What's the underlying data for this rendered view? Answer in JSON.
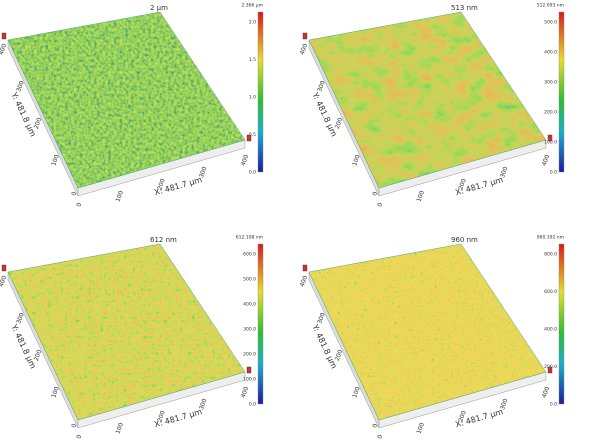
{
  "panels": [
    {
      "title": "2 µm",
      "scale_max": "2.366 µm",
      "scale_ticks": [
        "2.0",
        "1.5",
        "1.0",
        "0.5",
        "0.0"
      ],
      "x_label": "X: 481.7 µm",
      "y_label": "Y: 481.8 µm",
      "x_ticks": [
        "0",
        "100",
        "200",
        "300",
        "400"
      ],
      "y_ticks": [
        "0",
        "100",
        "200",
        "300",
        "400"
      ]
    },
    {
      "title": "513 nm",
      "scale_max": "512.093 nm",
      "scale_ticks": [
        "500.0",
        "400.0",
        "300.0",
        "200.0",
        "100.0",
        "0.0"
      ],
      "x_label": "X: 481.7 µm",
      "y_label": "Y: 481.8 µm",
      "x_ticks": [
        "0",
        "100",
        "200",
        "300",
        "400"
      ],
      "y_ticks": [
        "0",
        "100",
        "200",
        "300",
        "400"
      ]
    },
    {
      "title": "612 nm",
      "scale_max": "612.108 nm",
      "scale_ticks": [
        "600.0",
        "500.0",
        "400.0",
        "300.0",
        "200.0",
        "100.0",
        "0.0"
      ],
      "x_label": "X: 481.7 µm",
      "y_label": "Y: 481.8 µm",
      "x_ticks": [
        "0",
        "100",
        "200",
        "300",
        "400"
      ],
      "y_ticks": [
        "0",
        "100",
        "200",
        "300",
        "400"
      ]
    },
    {
      "title": "960 nm",
      "scale_max": "960.392 nm",
      "scale_ticks": [
        "800.0",
        "600.0",
        "400.0",
        "200.0",
        "0.0"
      ],
      "x_label": "X: 481.7 µm",
      "y_label": "Y: 481.8 µm",
      "x_ticks": [
        "0",
        "100",
        "200",
        "300",
        "400"
      ],
      "y_ticks": [
        "0",
        "100",
        "200",
        "300",
        "400"
      ]
    }
  ]
}
